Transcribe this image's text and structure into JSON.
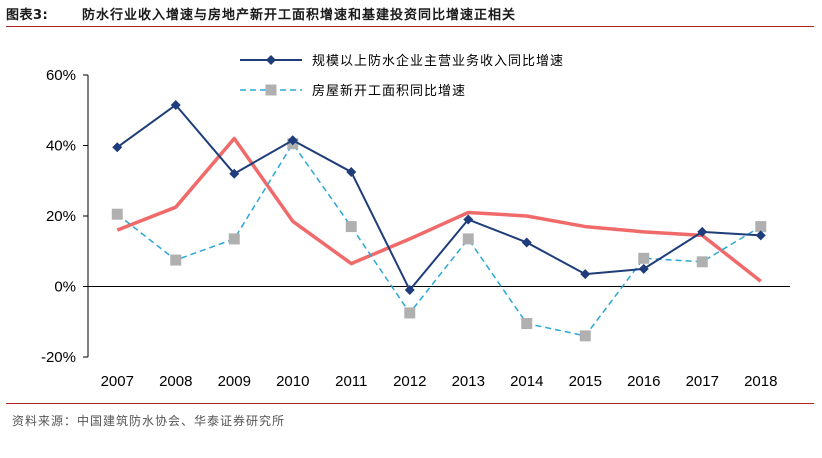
{
  "header": {
    "label": "图表3:",
    "title": "防水行业收入增速与房地产新开工面积增速和基建投资同比增速正相关"
  },
  "source": "资料来源：中国建筑防水协会、华泰证券研究所",
  "colors": {
    "navy": "#1f3d7a",
    "red": "#f06a6a",
    "cyan": "#2aa7d8",
    "gray": "#b0b0b0",
    "rule": "#b22222"
  },
  "chart_data": {
    "type": "line",
    "categories": [
      "2007",
      "2008",
      "2009",
      "2010",
      "2011",
      "2012",
      "2013",
      "2014",
      "2015",
      "2016",
      "2017",
      "2018"
    ],
    "ylim": [
      -20,
      60
    ],
    "yticks": [
      -20,
      0,
      20,
      40,
      60
    ],
    "ytick_labels": [
      "-20%",
      "0%",
      "20%",
      "40%",
      "60%"
    ],
    "legend_placement": "top-center",
    "series": [
      {
        "name": "规模以上防水企业主营业务收入同比增速",
        "style": "solid-diamond",
        "color": "#1f3d7a",
        "values": [
          39.5,
          51.5,
          32,
          41.5,
          32.5,
          -1,
          19,
          12.5,
          3.5,
          5,
          15.5,
          14.5
        ]
      },
      {
        "name": "",
        "style": "solid-thick",
        "color": "#f06a6a",
        "values": [
          16,
          22.5,
          42,
          18.5,
          6.5,
          13.5,
          21,
          20,
          17,
          15.5,
          14.5,
          1.5
        ]
      },
      {
        "name": "房屋新开工面积同比增速",
        "style": "dashed-square",
        "color": "#2aa7d8",
        "marker_color": "#b0b0b0",
        "values": [
          20.5,
          7.5,
          13.5,
          40.5,
          17,
          -7.5,
          13.5,
          -10.5,
          -14,
          8,
          7,
          17
        ]
      }
    ]
  }
}
